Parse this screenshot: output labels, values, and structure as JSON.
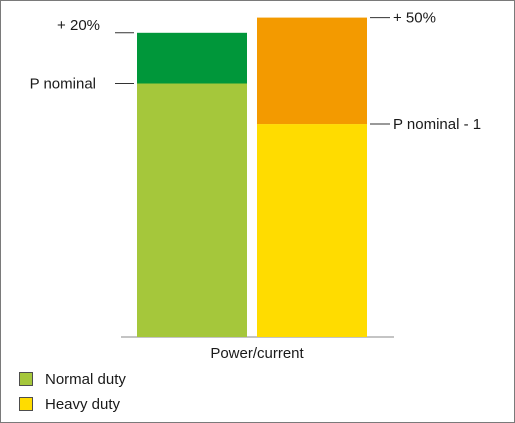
{
  "chart_data": {
    "type": "bar",
    "stacked": true,
    "categories": [
      "Normal duty",
      "Heavy duty"
    ],
    "xlabel": "Power/current",
    "ylabel": "",
    "grid": false,
    "legend_position": "bottom-left",
    "bars": [
      {
        "name": "Normal duty",
        "segments": [
          {
            "label": "P nominal",
            "value": 100,
            "color": "#a5c73b"
          },
          {
            "label": "+ 20%",
            "value": 20,
            "color": "#00973a"
          }
        ]
      },
      {
        "name": "Heavy duty",
        "segments": [
          {
            "label": "P nominal - 1",
            "value": 84,
            "color": "#ffdc00"
          },
          {
            "label": "+ 50%",
            "value": 42,
            "color": "#f39a00"
          }
        ]
      }
    ],
    "legend": [
      {
        "label": "Normal duty",
        "color": "#a5c73b"
      },
      {
        "label": "Heavy duty",
        "color": "#ffdc00"
      }
    ]
  }
}
